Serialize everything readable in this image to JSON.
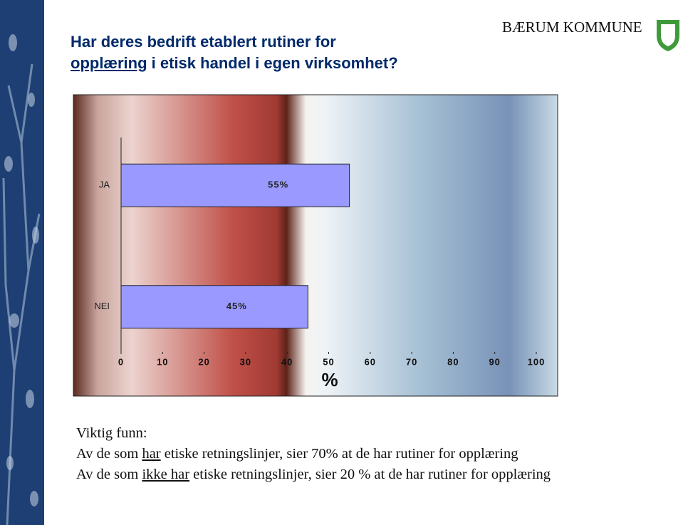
{
  "slide": {
    "title": {
      "line1": "Har deres bedrift etablert rutiner for",
      "underlined": "opplæring",
      "rest": " i etisk handel i egen virksomhet?"
    },
    "logo": "BÆRUM KOMMUNE",
    "findings": {
      "heading": "Viktig funn:",
      "line1": {
        "a": "Av de som ",
        "underlined": "har",
        "b": " etiske retningslinjer, sier 70% at de har rutiner for opplæring"
      },
      "line2": {
        "a": "Av de som ",
        "underlined": "ikke har",
        "b": " etiske retningslinjer, sier 20 % at de har rutiner for opplæring"
      }
    }
  },
  "chart_data": {
    "type": "bar",
    "orientation": "horizontal",
    "categories": [
      "JA",
      "NEI"
    ],
    "values": [
      55,
      45
    ],
    "value_labels": [
      "55%",
      "45%"
    ],
    "color": "#9999ff",
    "xlabel": "%",
    "xlim": [
      0,
      100
    ],
    "xticks": [
      0,
      10,
      20,
      30,
      40,
      50,
      60,
      70,
      80,
      90,
      100
    ]
  }
}
